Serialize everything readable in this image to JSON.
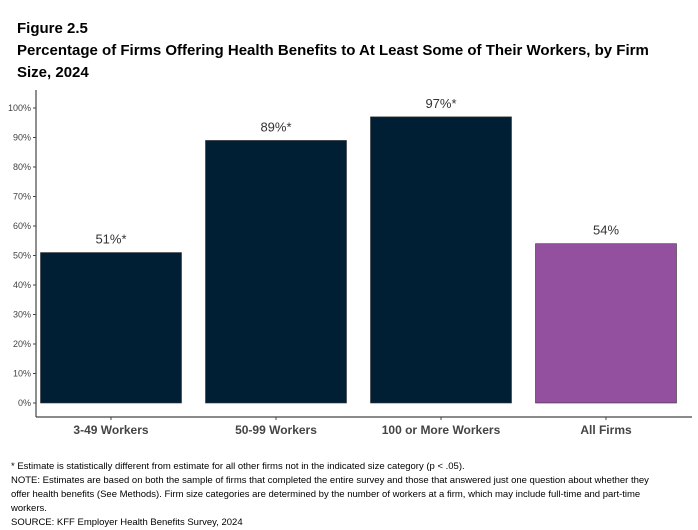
{
  "figure_label": "Figure 2.5",
  "chart_data": {
    "type": "bar",
    "title": "Percentage of Firms Offering Health Benefits to At Least Some of Their Workers, by Firm Size, 2024",
    "categories": [
      "3-49 Workers",
      "50-99 Workers",
      "100 or More Workers",
      "All Firms"
    ],
    "values": [
      51,
      89,
      97,
      54
    ],
    "data_labels": [
      "51%*",
      "89%*",
      "97%*",
      "54%"
    ],
    "colors": [
      "#001f35",
      "#001f35",
      "#001f35",
      "#93509e"
    ],
    "ylim": [
      0,
      100
    ],
    "yticks": [
      "0%",
      "10%",
      "20%",
      "30%",
      "40%",
      "50%",
      "60%",
      "70%",
      "80%",
      "90%",
      "100%"
    ],
    "xlabel": "",
    "ylabel": "",
    "grid": false
  },
  "notes": {
    "asterisk": "* Estimate is statistically different from estimate for all other firms not in the indicated size category (p < .05).",
    "note": "NOTE: Estimates are based on both the sample of firms that completed the entire survey and those that answered just one question about whether they offer health benefits (See Methods). Firm size categories are determined by the number of workers at a firm, which may include full-time and part-time workers.",
    "source": "SOURCE: KFF Employer Health Benefits Survey, 2024"
  }
}
